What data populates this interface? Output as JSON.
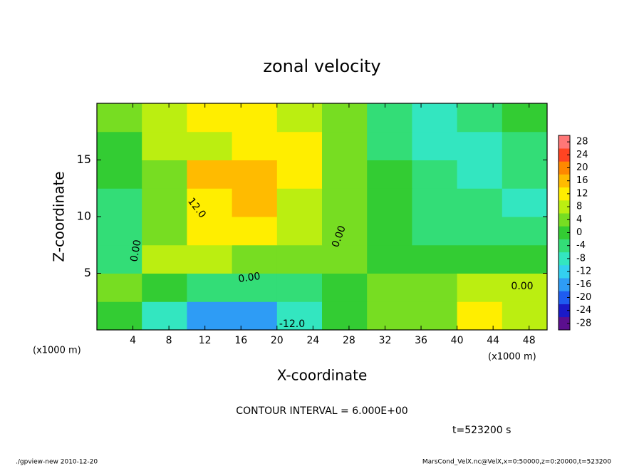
{
  "chart_data": {
    "type": "heatmap",
    "title": "zonal velocity",
    "xlabel": "X-coordinate",
    "ylabel": "Z-coordinate",
    "x_unit": "(x1000 m)",
    "y_unit": "(x1000 m)",
    "xlim": [
      0,
      50
    ],
    "ylim": [
      0,
      20
    ],
    "xticks": [
      4,
      8,
      12,
      16,
      20,
      24,
      28,
      32,
      36,
      40,
      44,
      48
    ],
    "yticks": [
      5,
      10,
      15
    ],
    "x": [
      2.5,
      7.5,
      12.5,
      17.5,
      22.5,
      27.5,
      32.5,
      37.5,
      42.5,
      47.5
    ],
    "y": [
      1.25,
      3.75,
      6.25,
      8.75,
      11.25,
      13.75,
      16.25,
      18.75
    ],
    "values": [
      [
        0,
        -8,
        -18,
        -18,
        -8,
        0,
        2,
        4,
        12,
        8
      ],
      [
        2,
        -2,
        -6,
        -6,
        -4,
        0,
        4,
        2,
        6,
        6
      ],
      [
        -6,
        6,
        6,
        4,
        2,
        2,
        0,
        -2,
        0,
        -2
      ],
      [
        -4,
        4,
        10,
        10,
        6,
        2,
        -2,
        -4,
        -6,
        -6
      ],
      [
        -6,
        4,
        12,
        14,
        8,
        2,
        -2,
        -6,
        -6,
        -8
      ],
      [
        -2,
        4,
        14,
        16,
        10,
        2,
        -2,
        -6,
        -8,
        -6
      ],
      [
        0,
        6,
        8,
        12,
        10,
        2,
        -4,
        -10,
        -8,
        -4
      ],
      [
        2,
        6,
        10,
        12,
        8,
        2,
        -4,
        -8,
        -6,
        -2
      ]
    ],
    "clim": [
      -30,
      30
    ],
    "cticks": [
      28,
      24,
      20,
      16,
      12,
      8,
      4,
      0,
      -4,
      -8,
      -12,
      -16,
      -20,
      -24,
      -28
    ],
    "colors": [
      "#5b0f8f",
      "#1a1ac8",
      "#1e5cf0",
      "#2e9cf5",
      "#33d0f0",
      "#33e6c0",
      "#33dd77",
      "#33cc33",
      "#77dd22",
      "#bbee11",
      "#ffee00",
      "#ffbb00",
      "#ff8800",
      "#ff4422",
      "#ff7777"
    ],
    "contour_labels": [
      "12.0",
      "0.00",
      "0.00",
      "0.00",
      "0.00",
      "-12.0"
    ],
    "contour_interval": "CONTOUR INTERVAL = 6.000E+00",
    "time": "t=523200 s",
    "footer_left": "./gpview-new  2010-12-20",
    "footer_right": "MarsCond_VelX.nc@VelX,x=0:50000,z=0:20000,t=523200"
  }
}
